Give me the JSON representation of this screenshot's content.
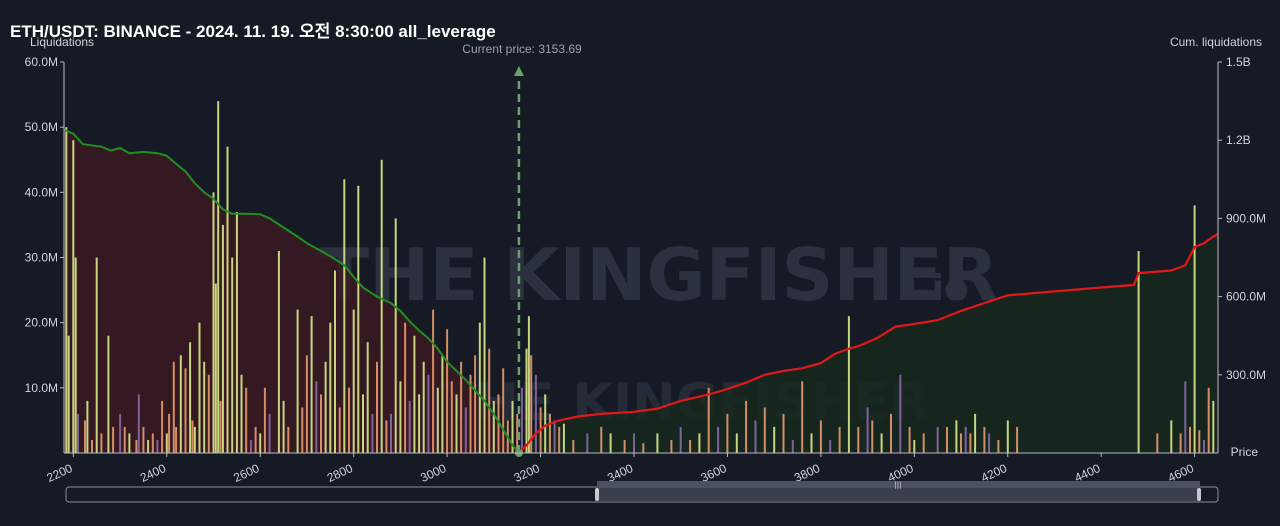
{
  "title": "ETH/USDT: BINANCE - 2024. 11. 19. 오전 8:30:00 all_leverage",
  "watermark": {
    "text": "THE KINGFISHER",
    "suffix": ".io"
  },
  "chart_data": {
    "type": "bar",
    "title": "ETH/USDT: BINANCE - 2024. 11. 19. 오전 8:30:00 all_leverage",
    "ylabel": "Liquidations",
    "y2label": "Cum. liquidations",
    "xlabel": "Price",
    "current_price": 3153.69,
    "current_price_label": "Current price: 3153.69",
    "xlim": [
      2180,
      4650
    ],
    "ylim": [
      0,
      60000000
    ],
    "y2lim": [
      0,
      1500000000
    ],
    "x_ticks": [
      2200,
      2400,
      2600,
      2800,
      3000,
      3200,
      3400,
      3600,
      3800,
      4000,
      4200,
      4400,
      4600
    ],
    "y_ticks": [
      {
        "value": 10000000,
        "label": "10.0M"
      },
      {
        "value": 20000000,
        "label": "20.0M"
      },
      {
        "value": 30000000,
        "label": "30.0M"
      },
      {
        "value": 40000000,
        "label": "40.0M"
      },
      {
        "value": 50000000,
        "label": "50.0M"
      },
      {
        "value": 60000000,
        "label": "60.0M"
      }
    ],
    "y2_ticks": [
      {
        "value": 300000000,
        "label": "300.0M"
      },
      {
        "value": 600000000,
        "label": "600.0M"
      },
      {
        "value": 900000000,
        "label": "900.0M"
      },
      {
        "value": 1200000000,
        "label": "1.2B"
      },
      {
        "value": 1500000000,
        "label": "1.5B"
      }
    ],
    "colors": {
      "long_cum": "#1f8f1f",
      "short_cum": "#e01818",
      "long_fill": "#3a1a22",
      "short_fill": "#17281f",
      "bar_high": "#d8ea8a",
      "bar_mid": "#e89a6a",
      "bar_low": "#8a6aa8",
      "current_price": "#6b9f6b"
    },
    "long_bars": [
      [
        2185,
        50000000
      ],
      [
        2190,
        18000000
      ],
      [
        2200,
        48000000
      ],
      [
        2205,
        30000000
      ],
      [
        2210,
        6000000
      ],
      [
        2225,
        5000000
      ],
      [
        2230,
        8000000
      ],
      [
        2240,
        2000000
      ],
      [
        2250,
        30000000
      ],
      [
        2260,
        3000000
      ],
      [
        2275,
        18000000
      ],
      [
        2285,
        4000000
      ],
      [
        2300,
        6000000
      ],
      [
        2310,
        4000000
      ],
      [
        2320,
        3000000
      ],
      [
        2335,
        2000000
      ],
      [
        2340,
        9000000
      ],
      [
        2350,
        4000000
      ],
      [
        2360,
        2000000
      ],
      [
        2370,
        3000000
      ],
      [
        2380,
        2000000
      ],
      [
        2390,
        8000000
      ],
      [
        2400,
        3000000
      ],
      [
        2405,
        6000000
      ],
      [
        2415,
        14000000
      ],
      [
        2420,
        4000000
      ],
      [
        2430,
        15000000
      ],
      [
        2440,
        13000000
      ],
      [
        2450,
        17000000
      ],
      [
        2455,
        5000000
      ],
      [
        2460,
        4000000
      ],
      [
        2470,
        20000000
      ],
      [
        2480,
        14000000
      ],
      [
        2490,
        12000000
      ],
      [
        2500,
        40000000
      ],
      [
        2505,
        26000000
      ],
      [
        2510,
        54000000
      ],
      [
        2515,
        8000000
      ],
      [
        2520,
        35000000
      ],
      [
        2530,
        47000000
      ],
      [
        2540,
        30000000
      ],
      [
        2550,
        37000000
      ],
      [
        2560,
        12000000
      ],
      [
        2570,
        10000000
      ],
      [
        2580,
        2000000
      ],
      [
        2590,
        4000000
      ],
      [
        2600,
        3000000
      ],
      [
        2610,
        10000000
      ],
      [
        2620,
        6000000
      ],
      [
        2640,
        31000000
      ],
      [
        2650,
        8000000
      ],
      [
        2660,
        4000000
      ],
      [
        2680,
        22000000
      ],
      [
        2690,
        7000000
      ],
      [
        2700,
        15000000
      ],
      [
        2710,
        21000000
      ],
      [
        2720,
        11000000
      ],
      [
        2730,
        9000000
      ],
      [
        2740,
        14000000
      ],
      [
        2750,
        20000000
      ],
      [
        2760,
        28000000
      ],
      [
        2770,
        7000000
      ],
      [
        2780,
        42000000
      ],
      [
        2790,
        10000000
      ],
      [
        2800,
        22000000
      ],
      [
        2810,
        41000000
      ],
      [
        2820,
        9000000
      ],
      [
        2830,
        17000000
      ],
      [
        2840,
        6000000
      ],
      [
        2850,
        14000000
      ],
      [
        2860,
        45000000
      ],
      [
        2870,
        5000000
      ],
      [
        2880,
        6000000
      ],
      [
        2890,
        36000000
      ],
      [
        2900,
        11000000
      ],
      [
        2910,
        20000000
      ],
      [
        2920,
        8000000
      ],
      [
        2930,
        18000000
      ],
      [
        2940,
        9000000
      ],
      [
        2950,
        14000000
      ],
      [
        2960,
        12000000
      ],
      [
        2970,
        22000000
      ],
      [
        2980,
        10000000
      ],
      [
        2990,
        15000000
      ],
      [
        3000,
        19000000
      ],
      [
        3010,
        11000000
      ],
      [
        3020,
        9000000
      ],
      [
        3030,
        14000000
      ],
      [
        3040,
        7000000
      ],
      [
        3050,
        12000000
      ],
      [
        3060,
        15000000
      ],
      [
        3070,
        20000000
      ],
      [
        3080,
        30000000
      ],
      [
        3090,
        16000000
      ],
      [
        3100,
        8000000
      ],
      [
        3110,
        9000000
      ],
      [
        3120,
        13000000
      ],
      [
        3130,
        5000000
      ],
      [
        3140,
        8000000
      ],
      [
        3150,
        6000000
      ]
    ],
    "short_bars": [
      [
        3160,
        10000000
      ],
      [
        3170,
        16000000
      ],
      [
        3175,
        21000000
      ],
      [
        3180,
        15000000
      ],
      [
        3190,
        12000000
      ],
      [
        3200,
        7000000
      ],
      [
        3210,
        9000000
      ],
      [
        3220,
        6000000
      ],
      [
        3230,
        5000000
      ],
      [
        3240,
        4000000
      ],
      [
        3250,
        4500000
      ],
      [
        3270,
        2000000
      ],
      [
        3300,
        3000000
      ],
      [
        3330,
        4000000
      ],
      [
        3350,
        3000000
      ],
      [
        3380,
        2000000
      ],
      [
        3400,
        3000000
      ],
      [
        3420,
        1500000
      ],
      [
        3450,
        3000000
      ],
      [
        3480,
        2000000
      ],
      [
        3500,
        4000000
      ],
      [
        3520,
        2000000
      ],
      [
        3540,
        3000000
      ],
      [
        3560,
        10000000
      ],
      [
        3580,
        4000000
      ],
      [
        3600,
        6000000
      ],
      [
        3620,
        3000000
      ],
      [
        3640,
        8000000
      ],
      [
        3660,
        5000000
      ],
      [
        3680,
        7000000
      ],
      [
        3700,
        4000000
      ],
      [
        3720,
        6000000
      ],
      [
        3740,
        2000000
      ],
      [
        3760,
        11000000
      ],
      [
        3780,
        3000000
      ],
      [
        3800,
        5000000
      ],
      [
        3820,
        2000000
      ],
      [
        3840,
        4000000
      ],
      [
        3860,
        21000000
      ],
      [
        3880,
        4000000
      ],
      [
        3900,
        7000000
      ],
      [
        3910,
        5000000
      ],
      [
        3930,
        3000000
      ],
      [
        3950,
        6000000
      ],
      [
        3970,
        12000000
      ],
      [
        3990,
        4000000
      ],
      [
        4000,
        2000000
      ],
      [
        4020,
        3000000
      ],
      [
        4050,
        4000000
      ],
      [
        4070,
        4000000
      ],
      [
        4090,
        5000000
      ],
      [
        4100,
        3000000
      ],
      [
        4110,
        4000000
      ],
      [
        4120,
        3000000
      ],
      [
        4130,
        6000000
      ],
      [
        4150,
        4000000
      ],
      [
        4160,
        3000000
      ],
      [
        4180,
        2000000
      ],
      [
        4200,
        5000000
      ],
      [
        4220,
        4000000
      ],
      [
        4480,
        31000000
      ],
      [
        4520,
        3000000
      ],
      [
        4550,
        5000000
      ],
      [
        4570,
        3000000
      ],
      [
        4580,
        11000000
      ],
      [
        4590,
        4000000
      ],
      [
        4600,
        38000000
      ],
      [
        4610,
        3500000
      ],
      [
        4620,
        2000000
      ],
      [
        4630,
        10000000
      ],
      [
        4640,
        8000000
      ]
    ],
    "long_cum": [
      [
        2180,
        1240000000
      ],
      [
        2200,
        1225000000
      ],
      [
        2220,
        1185000000
      ],
      [
        2260,
        1175000000
      ],
      [
        2280,
        1160000000
      ],
      [
        2300,
        1170000000
      ],
      [
        2320,
        1150000000
      ],
      [
        2350,
        1155000000
      ],
      [
        2380,
        1150000000
      ],
      [
        2400,
        1140000000
      ],
      [
        2420,
        1110000000
      ],
      [
        2440,
        1080000000
      ],
      [
        2460,
        1035000000
      ],
      [
        2480,
        1000000000
      ],
      [
        2500,
        975000000
      ],
      [
        2520,
        935000000
      ],
      [
        2540,
        918000000
      ],
      [
        2560,
        918000000
      ],
      [
        2600,
        916000000
      ],
      [
        2620,
        900000000
      ],
      [
        2650,
        865000000
      ],
      [
        2680,
        830000000
      ],
      [
        2700,
        805000000
      ],
      [
        2720,
        785000000
      ],
      [
        2750,
        755000000
      ],
      [
        2780,
        720000000
      ],
      [
        2800,
        675000000
      ],
      [
        2820,
        635000000
      ],
      [
        2850,
        600000000
      ],
      [
        2880,
        575000000
      ],
      [
        2900,
        545000000
      ],
      [
        2920,
        505000000
      ],
      [
        2940,
        470000000
      ],
      [
        2960,
        440000000
      ],
      [
        2980,
        400000000
      ],
      [
        3000,
        350000000
      ],
      [
        3020,
        315000000
      ],
      [
        3040,
        280000000
      ],
      [
        3060,
        240000000
      ],
      [
        3080,
        200000000
      ],
      [
        3100,
        150000000
      ],
      [
        3120,
        90000000
      ],
      [
        3140,
        30000000
      ],
      [
        3153.69,
        0
      ]
    ],
    "short_cum": [
      [
        3153.69,
        0
      ],
      [
        3170,
        30000000
      ],
      [
        3190,
        75000000
      ],
      [
        3210,
        105000000
      ],
      [
        3240,
        125000000
      ],
      [
        3280,
        140000000
      ],
      [
        3330,
        150000000
      ],
      [
        3400,
        158000000
      ],
      [
        3450,
        170000000
      ],
      [
        3500,
        200000000
      ],
      [
        3560,
        225000000
      ],
      [
        3600,
        245000000
      ],
      [
        3640,
        270000000
      ],
      [
        3680,
        300000000
      ],
      [
        3720,
        315000000
      ],
      [
        3760,
        325000000
      ],
      [
        3800,
        345000000
      ],
      [
        3830,
        380000000
      ],
      [
        3860,
        400000000
      ],
      [
        3880,
        410000000
      ],
      [
        3920,
        440000000
      ],
      [
        3960,
        485000000
      ],
      [
        4000,
        495000000
      ],
      [
        4050,
        510000000
      ],
      [
        4100,
        545000000
      ],
      [
        4150,
        575000000
      ],
      [
        4200,
        605000000
      ],
      [
        4300,
        620000000
      ],
      [
        4400,
        635000000
      ],
      [
        4470,
        645000000
      ],
      [
        4480,
        690000000
      ],
      [
        4550,
        700000000
      ],
      [
        4580,
        720000000
      ],
      [
        4600,
        790000000
      ],
      [
        4620,
        805000000
      ],
      [
        4640,
        830000000
      ],
      [
        4650,
        840000000
      ]
    ]
  },
  "scrollbar": {
    "grip_label": "|||"
  }
}
